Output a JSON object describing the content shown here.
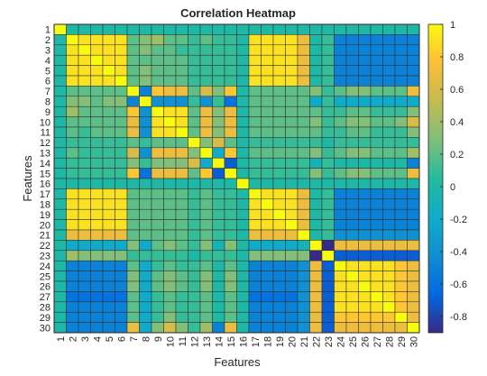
{
  "chart_data": {
    "type": "heatmap",
    "title": "Correlation Heatmap",
    "xlabel": "Features",
    "ylabel": "Features",
    "x_categories": [
      "1",
      "2",
      "3",
      "4",
      "5",
      "6",
      "7",
      "8",
      "9",
      "10",
      "11",
      "12",
      "13",
      "14",
      "15",
      "16",
      "17",
      "18",
      "19",
      "20",
      "21",
      "22",
      "23",
      "24",
      "25",
      "26",
      "27",
      "28",
      "29",
      "30"
    ],
    "y_categories": [
      "1",
      "2",
      "3",
      "4",
      "5",
      "6",
      "7",
      "8",
      "9",
      "10",
      "11",
      "12",
      "13",
      "14",
      "15",
      "16",
      "17",
      "18",
      "19",
      "20",
      "21",
      "22",
      "23",
      "24",
      "25",
      "26",
      "27",
      "28",
      "29",
      "30"
    ],
    "colorbar": {
      "min": -0.9,
      "max": 1.0,
      "ticks": [
        -0.8,
        -0.6,
        -0.4,
        -0.2,
        0,
        0.2,
        0.4,
        0.6,
        0.8,
        1
      ],
      "tick_labels": [
        "-0.8",
        "-0.6",
        "-0.4",
        "-0.2",
        "0",
        "0.2",
        "0.4",
        "0.6",
        "0.8",
        "1"
      ],
      "colormap": "parula"
    },
    "grid": true,
    "values": [
      [
        1.0,
        0.0,
        0.0,
        0.0,
        0.0,
        0.0,
        0.0,
        0.0,
        0.0,
        0.0,
        0.0,
        0.0,
        0.0,
        0.0,
        0.0,
        0.0,
        0.0,
        0.0,
        0.0,
        0.0,
        0.0,
        0.0,
        0.0,
        0.0,
        0.0,
        0.0,
        0.0,
        0.0,
        0.0,
        0.0
      ],
      [
        0.0,
        1.0,
        0.9,
        0.9,
        0.9,
        0.9,
        0.2,
        0.3,
        0.4,
        0.2,
        0.2,
        0.1,
        0.2,
        0.1,
        0.1,
        0.0,
        0.9,
        0.9,
        0.9,
        0.9,
        0.7,
        0.0,
        0.1,
        -0.5,
        -0.5,
        -0.5,
        -0.5,
        -0.5,
        -0.5,
        -0.5
      ],
      [
        0.0,
        0.9,
        1.0,
        0.9,
        0.9,
        0.9,
        0.2,
        0.3,
        0.2,
        0.2,
        0.1,
        0.1,
        0.1,
        0.1,
        0.1,
        0.0,
        0.9,
        0.9,
        0.9,
        0.9,
        0.7,
        0.0,
        0.1,
        -0.5,
        -0.5,
        -0.5,
        -0.5,
        -0.5,
        -0.5,
        -0.5
      ],
      [
        0.0,
        0.9,
        0.9,
        1.0,
        0.9,
        0.9,
        0.2,
        0.2,
        0.2,
        0.2,
        0.2,
        0.1,
        0.1,
        0.1,
        0.1,
        0.0,
        0.9,
        0.9,
        0.9,
        0.9,
        0.7,
        0.0,
        0.1,
        -0.5,
        -0.5,
        -0.5,
        -0.5,
        -0.5,
        -0.5,
        -0.5
      ],
      [
        0.0,
        0.9,
        0.9,
        0.9,
        1.0,
        0.9,
        0.2,
        0.3,
        0.2,
        0.2,
        0.2,
        0.1,
        0.1,
        0.1,
        0.1,
        0.0,
        0.9,
        0.9,
        0.9,
        0.9,
        0.7,
        0.0,
        0.1,
        -0.5,
        -0.5,
        -0.5,
        -0.5,
        -0.5,
        -0.5,
        -0.5
      ],
      [
        0.0,
        0.9,
        0.9,
        0.9,
        0.9,
        1.0,
        0.2,
        0.3,
        0.2,
        0.2,
        0.2,
        0.1,
        0.1,
        0.1,
        0.1,
        0.0,
        0.9,
        0.9,
        0.9,
        0.9,
        0.7,
        0.0,
        0.1,
        -0.5,
        -0.5,
        -0.5,
        -0.5,
        -0.5,
        -0.5,
        -0.5
      ],
      [
        0.0,
        0.2,
        0.2,
        0.2,
        0.2,
        0.2,
        1.0,
        -0.5,
        0.8,
        0.7,
        0.7,
        0.2,
        0.6,
        0.3,
        0.8,
        0.0,
        0.2,
        0.2,
        0.2,
        0.2,
        0.2,
        0.3,
        0.1,
        0.2,
        0.3,
        0.3,
        0.2,
        0.2,
        0.2,
        0.7
      ],
      [
        0.0,
        0.3,
        0.3,
        0.2,
        0.3,
        0.3,
        -0.5,
        1.0,
        -0.4,
        -0.4,
        -0.4,
        0.1,
        -0.4,
        0.1,
        -0.6,
        0.0,
        0.2,
        0.2,
        0.2,
        0.2,
        0.2,
        -0.2,
        0.1,
        -0.2,
        -0.2,
        -0.2,
        -0.2,
        -0.2,
        -0.2,
        -0.2
      ],
      [
        0.0,
        0.4,
        0.2,
        0.2,
        0.2,
        0.2,
        0.8,
        -0.4,
        1.0,
        0.9,
        0.9,
        0.2,
        0.7,
        0.3,
        0.7,
        0.0,
        0.2,
        0.2,
        0.2,
        0.2,
        0.2,
        0.2,
        0.1,
        0.1,
        0.2,
        0.2,
        0.1,
        0.1,
        0.1,
        0.3
      ],
      [
        0.0,
        0.2,
        0.2,
        0.2,
        0.2,
        0.2,
        0.7,
        -0.4,
        0.9,
        1.0,
        0.9,
        0.2,
        0.7,
        0.3,
        0.7,
        0.0,
        0.2,
        0.2,
        0.2,
        0.2,
        0.2,
        0.3,
        0.1,
        0.2,
        0.3,
        0.3,
        0.2,
        0.2,
        0.3,
        0.6
      ],
      [
        0.0,
        0.2,
        0.1,
        0.2,
        0.2,
        0.2,
        0.7,
        -0.4,
        0.9,
        0.9,
        1.0,
        0.2,
        0.7,
        0.3,
        0.7,
        0.0,
        0.2,
        0.2,
        0.2,
        0.2,
        0.2,
        0.2,
        0.1,
        0.1,
        0.2,
        0.2,
        0.1,
        0.1,
        0.1,
        0.3
      ],
      [
        0.0,
        0.1,
        0.1,
        0.1,
        0.1,
        0.1,
        0.2,
        0.1,
        0.2,
        0.2,
        0.2,
        1.0,
        0.3,
        0.6,
        0.2,
        0.0,
        0.1,
        0.1,
        0.1,
        0.1,
        0.1,
        0.1,
        0.0,
        0.1,
        0.1,
        0.1,
        0.1,
        0.1,
        0.1,
        0.1
      ],
      [
        0.0,
        0.2,
        0.1,
        0.1,
        0.1,
        0.1,
        0.6,
        -0.4,
        0.7,
        0.7,
        0.7,
        0.3,
        1.0,
        -0.2,
        0.8,
        0.0,
        0.2,
        0.2,
        0.2,
        0.2,
        0.2,
        0.3,
        0.1,
        0.2,
        0.3,
        0.3,
        0.2,
        0.2,
        0.2,
        0.4
      ],
      [
        0.0,
        0.1,
        0.1,
        0.1,
        0.1,
        0.1,
        0.3,
        0.1,
        0.3,
        0.3,
        0.3,
        0.6,
        -0.2,
        1.0,
        -0.7,
        0.0,
        0.1,
        0.1,
        0.1,
        0.1,
        0.1,
        -0.1,
        0.1,
        0.0,
        0.0,
        0.0,
        0.0,
        0.0,
        0.0,
        -0.5
      ],
      [
        0.0,
        0.1,
        0.1,
        0.1,
        0.1,
        0.1,
        0.8,
        -0.6,
        0.7,
        0.7,
        0.7,
        0.2,
        0.8,
        -0.7,
        1.0,
        0.0,
        0.1,
        0.1,
        0.1,
        0.1,
        0.1,
        0.3,
        0.1,
        0.2,
        0.3,
        0.3,
        0.2,
        0.2,
        0.2,
        0.7
      ],
      [
        0.0,
        0.0,
        0.0,
        0.0,
        0.0,
        0.0,
        0.0,
        0.0,
        0.0,
        0.0,
        0.0,
        0.0,
        0.0,
        0.0,
        0.0,
        1.0,
        0.0,
        0.0,
        0.0,
        0.0,
        0.0,
        0.0,
        0.0,
        0.0,
        0.0,
        0.0,
        0.0,
        0.0,
        0.0,
        0.0
      ],
      [
        0.0,
        0.9,
        0.9,
        0.9,
        0.9,
        0.9,
        0.2,
        0.2,
        0.2,
        0.2,
        0.2,
        0.1,
        0.2,
        0.1,
        0.1,
        0.0,
        1.0,
        0.9,
        0.9,
        0.9,
        0.7,
        0.0,
        0.1,
        -0.5,
        -0.5,
        -0.5,
        -0.5,
        -0.5,
        -0.5,
        -0.5
      ],
      [
        0.0,
        0.9,
        0.9,
        0.9,
        0.9,
        0.9,
        0.2,
        0.2,
        0.2,
        0.2,
        0.2,
        0.1,
        0.2,
        0.1,
        0.1,
        0.0,
        0.9,
        1.0,
        0.9,
        0.9,
        0.7,
        0.0,
        0.1,
        -0.5,
        -0.5,
        -0.5,
        -0.5,
        -0.5,
        -0.5,
        -0.5
      ],
      [
        0.0,
        0.9,
        0.9,
        0.9,
        0.9,
        0.9,
        0.2,
        0.2,
        0.2,
        0.2,
        0.2,
        0.1,
        0.2,
        0.1,
        0.1,
        0.0,
        0.9,
        0.9,
        1.0,
        0.9,
        0.7,
        0.0,
        0.1,
        -0.5,
        -0.5,
        -0.5,
        -0.5,
        -0.5,
        -0.5,
        -0.5
      ],
      [
        0.0,
        0.9,
        0.9,
        0.9,
        0.9,
        0.9,
        0.2,
        0.2,
        0.2,
        0.2,
        0.2,
        0.1,
        0.2,
        0.1,
        0.1,
        0.0,
        0.9,
        0.9,
        0.9,
        1.0,
        0.7,
        0.0,
        0.1,
        -0.5,
        -0.5,
        -0.5,
        -0.5,
        -0.5,
        -0.5,
        -0.5
      ],
      [
        0.0,
        0.7,
        0.7,
        0.7,
        0.7,
        0.7,
        0.2,
        0.2,
        0.2,
        0.2,
        0.2,
        0.1,
        0.2,
        0.1,
        0.1,
        0.0,
        0.7,
        0.7,
        0.7,
        0.7,
        1.0,
        0.0,
        0.1,
        -0.4,
        -0.4,
        -0.4,
        -0.4,
        -0.4,
        -0.4,
        -0.4
      ],
      [
        0.0,
        -0.2,
        -0.2,
        -0.2,
        -0.2,
        -0.2,
        0.3,
        -0.2,
        0.2,
        0.3,
        0.2,
        0.1,
        0.3,
        -0.1,
        0.3,
        0.0,
        -0.2,
        -0.2,
        -0.2,
        -0.2,
        -0.1,
        1.0,
        -0.9,
        0.7,
        0.7,
        0.7,
        0.7,
        0.7,
        0.7,
        0.7
      ],
      [
        0.0,
        0.4,
        0.3,
        0.3,
        0.3,
        0.3,
        0.1,
        0.1,
        0.1,
        0.1,
        0.1,
        0.0,
        0.1,
        0.1,
        0.1,
        0.0,
        0.3,
        0.3,
        0.3,
        0.3,
        0.3,
        -0.9,
        1.0,
        -0.7,
        -0.7,
        -0.7,
        -0.7,
        -0.7,
        -0.7,
        -0.7
      ],
      [
        0.0,
        -0.5,
        -0.5,
        -0.5,
        -0.5,
        -0.5,
        0.2,
        -0.2,
        0.1,
        0.2,
        0.1,
        0.1,
        0.2,
        0.0,
        0.2,
        0.0,
        -0.5,
        -0.5,
        -0.5,
        -0.5,
        -0.4,
        0.7,
        -0.7,
        1.0,
        0.9,
        0.9,
        0.9,
        0.9,
        0.8,
        0.7
      ],
      [
        0.0,
        -0.5,
        -0.5,
        -0.5,
        -0.5,
        -0.5,
        0.3,
        -0.2,
        0.2,
        0.3,
        0.2,
        0.1,
        0.3,
        0.0,
        0.3,
        0.0,
        -0.5,
        -0.5,
        -0.5,
        -0.5,
        -0.4,
        0.7,
        -0.7,
        0.9,
        1.0,
        0.9,
        0.9,
        0.9,
        0.8,
        0.7
      ],
      [
        0.0,
        -0.5,
        -0.5,
        -0.5,
        -0.5,
        -0.5,
        0.3,
        -0.2,
        0.2,
        0.3,
        0.2,
        0.1,
        0.3,
        0.0,
        0.3,
        0.0,
        -0.5,
        -0.5,
        -0.5,
        -0.5,
        -0.4,
        0.7,
        -0.7,
        0.9,
        0.9,
        1.0,
        0.9,
        0.9,
        0.8,
        0.7
      ],
      [
        0.0,
        -0.6,
        -0.6,
        -0.6,
        -0.6,
        -0.6,
        0.2,
        -0.2,
        0.1,
        0.2,
        0.1,
        0.1,
        0.2,
        0.0,
        0.2,
        0.0,
        -0.6,
        -0.6,
        -0.6,
        -0.6,
        -0.4,
        0.7,
        -0.7,
        0.9,
        0.9,
        0.9,
        1.0,
        0.9,
        0.8,
        0.7
      ],
      [
        0.0,
        -0.5,
        -0.5,
        -0.5,
        -0.5,
        -0.5,
        0.2,
        -0.2,
        0.1,
        0.2,
        0.1,
        0.1,
        0.2,
        0.0,
        0.2,
        0.0,
        -0.5,
        -0.5,
        -0.5,
        -0.5,
        -0.4,
        0.7,
        -0.7,
        0.9,
        0.9,
        0.9,
        0.9,
        1.0,
        0.8,
        0.7
      ],
      [
        0.0,
        -0.5,
        -0.5,
        -0.5,
        -0.5,
        -0.5,
        0.2,
        -0.2,
        0.1,
        0.3,
        0.1,
        0.1,
        0.2,
        0.0,
        0.2,
        0.0,
        -0.5,
        -0.5,
        -0.5,
        -0.5,
        -0.4,
        0.7,
        -0.7,
        0.8,
        0.8,
        0.8,
        0.8,
        0.8,
        1.0,
        0.7
      ],
      [
        0.0,
        -0.5,
        -0.5,
        -0.5,
        -0.5,
        -0.5,
        0.7,
        -0.2,
        0.3,
        0.6,
        0.3,
        0.1,
        0.4,
        -0.5,
        0.7,
        0.0,
        -0.5,
        -0.5,
        -0.5,
        -0.5,
        -0.4,
        0.7,
        -0.7,
        0.7,
        0.7,
        0.7,
        0.7,
        0.7,
        0.7,
        1.0
      ]
    ]
  }
}
